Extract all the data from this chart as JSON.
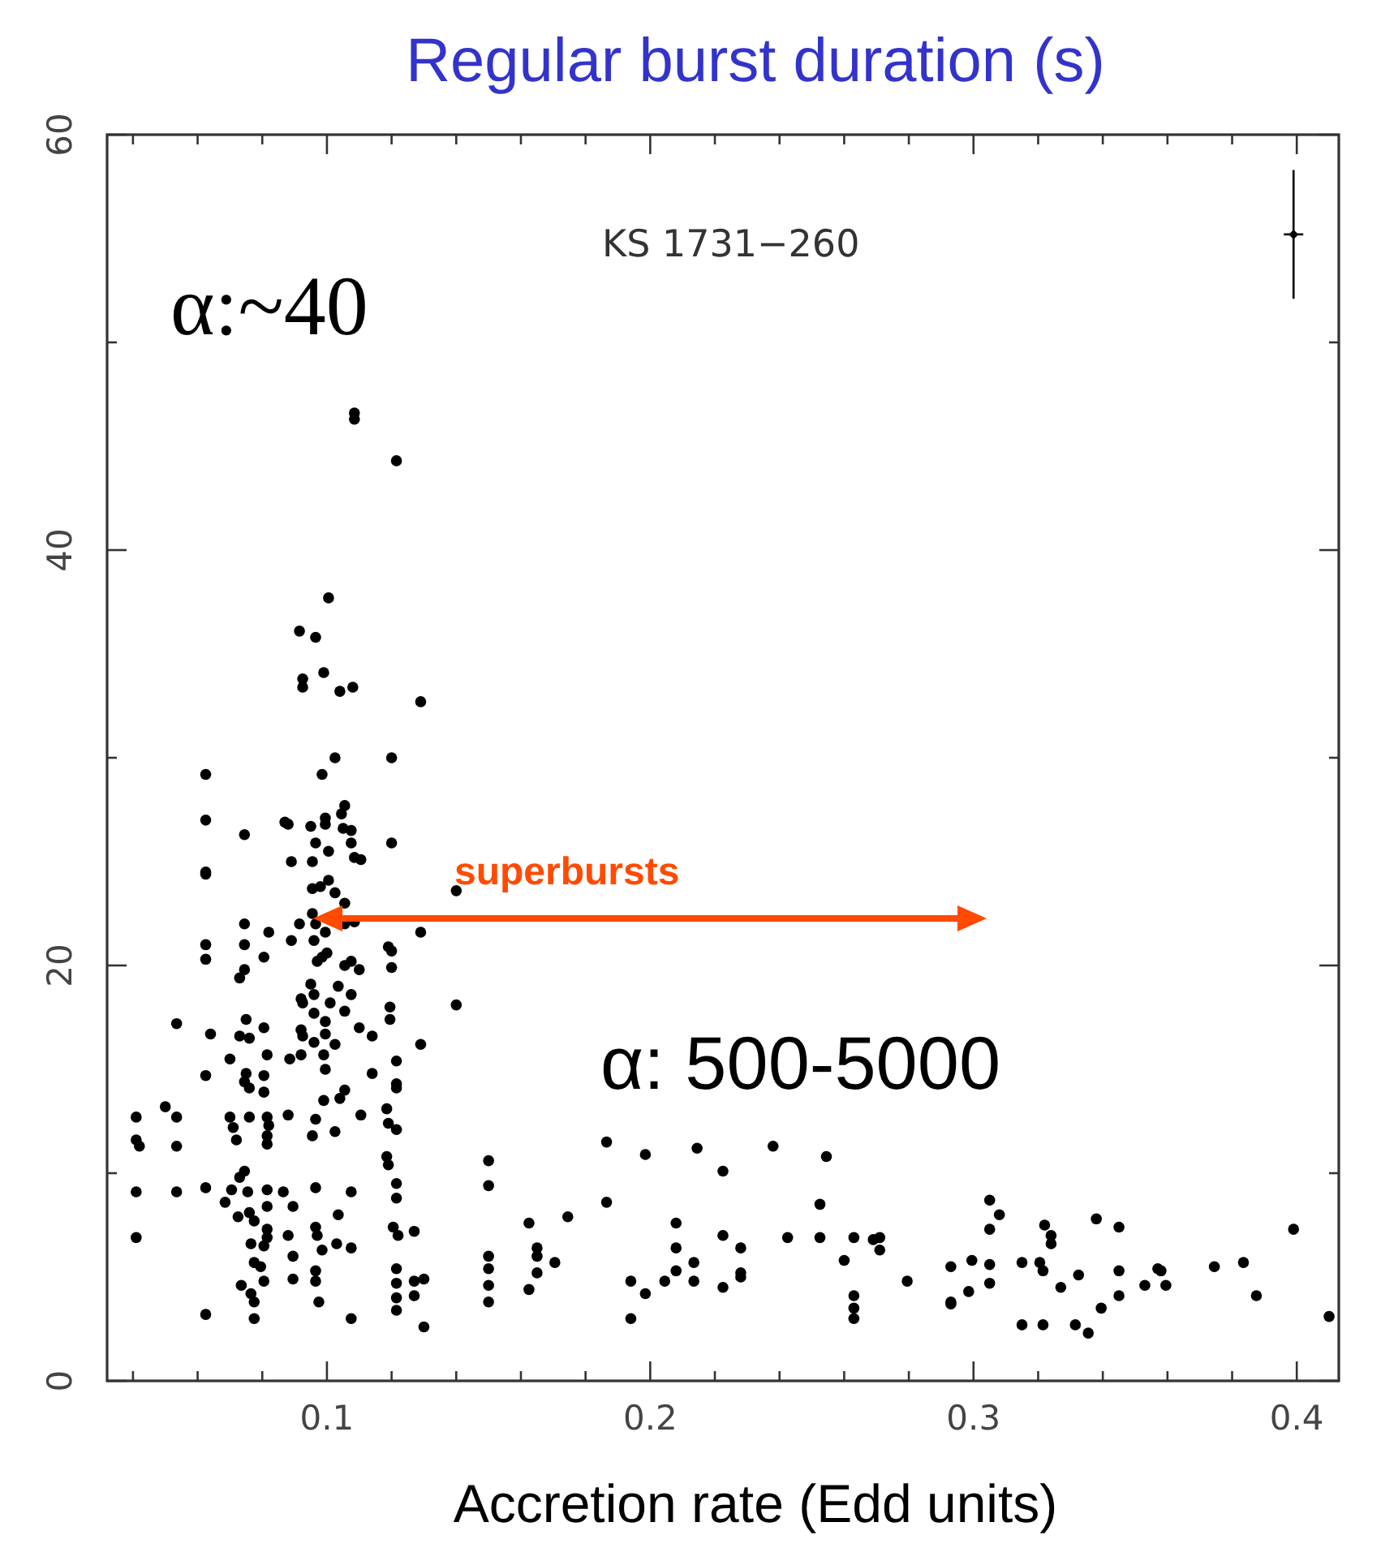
{
  "chart_data": {
    "type": "scatter",
    "title": "Regular burst duration (s)",
    "xlabel": "Accretion rate (Edd units)",
    "annotations": [
      "KS 1731−260",
      "α:~40",
      "α: 500-5000",
      "superbursts"
    ],
    "xlim": [
      0.032,
      0.413
    ],
    "xticks": [
      {
        "value": 0.04,
        "label": null
      },
      {
        "value": 0.06,
        "label": null
      },
      {
        "value": 0.08,
        "label": null
      },
      {
        "value": 0.1,
        "label": "0.1"
      },
      {
        "value": 0.12,
        "label": null
      },
      {
        "value": 0.14,
        "label": null
      },
      {
        "value": 0.16,
        "label": null
      },
      {
        "value": 0.18,
        "label": null
      },
      {
        "value": 0.2,
        "label": "0.2"
      },
      {
        "value": 0.22,
        "label": null
      },
      {
        "value": 0.24,
        "label": null
      },
      {
        "value": 0.26,
        "label": null
      },
      {
        "value": 0.28,
        "label": null
      },
      {
        "value": 0.3,
        "label": "0.3"
      },
      {
        "value": 0.32,
        "label": null
      },
      {
        "value": 0.34,
        "label": null
      },
      {
        "value": 0.36,
        "label": null
      },
      {
        "value": 0.38,
        "label": null
      },
      {
        "value": 0.4,
        "label": "0.4"
      }
    ],
    "ylim": [
      0,
      60
    ],
    "yticks": [
      0,
      {
        "value": 10,
        "label": null
      },
      20,
      {
        "value": 30,
        "label": null
      },
      40,
      {
        "value": 50,
        "label": null
      },
      60
    ],
    "grid": false,
    "marker": "circle",
    "series": [
      {
        "color": "#000000",
        "x": [
          0.1005,
          0.0915,
          0.0965,
          0.099,
          0.0925,
          0.0925,
          0.104,
          0.108,
          0.129,
          0.1025,
          0.12,
          0.0625,
          0.0985,
          0.0625,
          0.0745,
          0.087,
          0.088,
          0.095,
          0.0995,
          0.0995,
          0.1055,
          0.1045,
          0.105,
          0.1075,
          0.0965,
          0.1075,
          0.12,
          0.1005,
          0.1085,
          0.1105,
          0.089,
          0.0955,
          0.0625,
          0.0625,
          0.0955,
          0.098,
          0.1005,
          0.1025,
          0.14,
          0.1055,
          0.0955,
          0.0745,
          0.082,
          0.0915,
          0.0965,
          0.1055,
          0.1085,
          0.129,
          0.0625,
          0.0745,
          0.089,
          0.096,
          0.0995,
          0.1,
          0.0985,
          0.0625,
          0.0805,
          0.0745,
          0.073,
          0.097,
          0.1075,
          0.1055,
          0.11,
          0.119,
          0.12,
          0.12,
          0.095,
          0.1035,
          0.092,
          0.0925,
          0.096,
          0.101,
          0.1075,
          0.096,
          0.0995,
          0.1055,
          0.1195,
          0.1195,
          0.14,
          0.0535,
          0.064,
          0.075,
          0.073,
          0.076,
          0.0805,
          0.092,
          0.0925,
          0.0995,
          0.096,
          0.1025,
          0.11,
          0.114,
          0.129,
          0.07,
          0.0815,
          0.0885,
          0.092,
          0.099,
          0.0995,
          0.1215,
          0.0625,
          0.075,
          0.0745,
          0.076,
          0.0805,
          0.0805,
          0.114,
          0.1215,
          0.1215,
          0.1055,
          0.104,
          0.099,
          0.05,
          0.041,
          0.0535,
          0.07,
          0.076,
          0.071,
          0.072,
          0.0815,
          0.082,
          0.0815,
          0.0815,
          0.088,
          0.0965,
          0.0955,
          0.1025,
          0.1105,
          0.1185,
          0.119,
          0.1215,
          0.041,
          0.042,
          0.0535,
          0.1185,
          0.119,
          0.0745,
          0.073,
          0.1215,
          0.1215,
          0.041,
          0.0535,
          0.0625,
          0.0705,
          0.0755,
          0.0815,
          0.0815,
          0.0865,
          0.0895,
          0.0685,
          0.0725,
          0.076,
          0.0775,
          0.0965,
          0.1075,
          0.1035,
          0.041,
          0.0815,
          0.0815,
          0.0765,
          0.0805,
          0.088,
          0.0895,
          0.0965,
          0.097,
          0.0985,
          0.103,
          0.1075,
          0.1205,
          0.122,
          0.127,
          0.0775,
          0.0795,
          0.0805,
          0.0735,
          0.0765,
          0.0775,
          0.0895,
          0.0965,
          0.0965,
          0.0975,
          0.1215,
          0.1215,
          0.1215,
          0.1215,
          0.127,
          0.13,
          0.127,
          0.0625,
          0.0775,
          0.1075,
          0.13,
          0.1085,
          0.1085,
          0.1215,
          0.15,
          0.15,
          0.15,
          0.15,
          0.15,
          0.15,
          0.1625,
          0.1625,
          0.165,
          0.165,
          0.165,
          0.1705,
          0.1745,
          0.1865,
          0.1865,
          0.194,
          0.194,
          0.1985,
          0.1985,
          0.2045,
          0.208,
          0.208,
          0.208,
          0.2135,
          0.2135,
          0.2145,
          0.2225,
          0.2225,
          0.2225,
          0.228,
          0.228,
          0.228,
          0.238,
          0.2425,
          0.2525,
          0.2525,
          0.2545,
          0.26,
          0.263,
          0.263,
          0.263,
          0.263,
          0.269,
          0.271,
          0.271,
          0.2795,
          0.293,
          0.293,
          0.293,
          0.2985,
          0.2995,
          0.305,
          0.308,
          0.305,
          0.305,
          0.305,
          0.315,
          0.315,
          0.3205,
          0.3215,
          0.3215,
          0.322,
          0.324,
          0.324,
          0.327,
          0.3315,
          0.3355,
          0.3325,
          0.338,
          0.3395,
          0.345,
          0.345,
          0.345,
          0.353,
          0.357,
          0.358,
          0.3595,
          0.3745,
          0.3835,
          0.3875,
          0.399,
          0.41
        ],
        "values": [
          37.7,
          36.1,
          35.8,
          34.1,
          33.8,
          33.4,
          33.2,
          33.4,
          32.7,
          30.0,
          30.0,
          29.2,
          29.2,
          27.0,
          26.3,
          26.9,
          26.8,
          26.7,
          27.1,
          26.8,
          27.7,
          27.3,
          26.6,
          26.5,
          25.9,
          25.9,
          25.9,
          25.5,
          25.2,
          25.1,
          25.0,
          25.0,
          24.5,
          24.4,
          23.7,
          23.8,
          24.1,
          23.5,
          23.6,
          23.0,
          22.5,
          22.0,
          21.6,
          22.0,
          22.0,
          22.0,
          22.1,
          21.6,
          21.0,
          21.0,
          21.2,
          21.2,
          21.6,
          20.6,
          20.4,
          20.3,
          20.4,
          19.8,
          19.4,
          20.2,
          20.2,
          20.0,
          19.8,
          20.9,
          20.7,
          19.9,
          19.1,
          19.0,
          18.4,
          18.2,
          18.6,
          18.2,
          18.6,
          17.7,
          17.3,
          17.8,
          18.0,
          17.4,
          18.1,
          17.2,
          16.7,
          17.4,
          16.6,
          16.5,
          17.0,
          16.9,
          16.6,
          16.7,
          16.3,
          16.2,
          17.0,
          16.6,
          16.2,
          15.5,
          15.7,
          15.5,
          15.7,
          15.7,
          15.0,
          15.4,
          14.7,
          14.8,
          14.4,
          14.1,
          14.7,
          13.9,
          14.8,
          14.3,
          14.1,
          14.0,
          13.6,
          13.5,
          13.2,
          12.7,
          12.7,
          12.7,
          12.7,
          12.2,
          11.6,
          12.7,
          12.3,
          11.8,
          11.4,
          12.8,
          12.6,
          11.8,
          12.0,
          12.8,
          13.1,
          12.4,
          12.1,
          11.6,
          11.3,
          11.3,
          10.8,
          10.4,
          10.1,
          9.8,
          9.5,
          8.8,
          9.1,
          9.1,
          9.3,
          9.2,
          9.1,
          9.2,
          8.4,
          9.1,
          8.4,
          8.6,
          7.9,
          8.1,
          7.7,
          9.3,
          9.1,
          8.0,
          6.9,
          7.3,
          6.9,
          6.6,
          6.5,
          7.0,
          6.0,
          7.4,
          7.0,
          6.3,
          6.6,
          6.4,
          7.4,
          7.0,
          7.2,
          5.7,
          5.5,
          4.8,
          4.6,
          4.2,
          3.8,
          4.9,
          5.3,
          4.8,
          3.8,
          5.4,
          4.7,
          4.0,
          3.4,
          4.8,
          4.9,
          4.1,
          3.2,
          3.0,
          3.0,
          2.6,
          46.6,
          46.3,
          44.3,
          10.6,
          9.4,
          6.0,
          5.4,
          4.6,
          3.8,
          7.6,
          4.4,
          6.4,
          6.0,
          5.2,
          5.7,
          7.9,
          11.5,
          8.6,
          4.8,
          3.0,
          10.9,
          4.2,
          4.8,
          7.6,
          6.4,
          5.3,
          5.7,
          4.8,
          11.2,
          10.1,
          7.0,
          4.5,
          6.4,
          5.2,
          5.0,
          11.3,
          6.9,
          8.5,
          6.9,
          10.8,
          5.8,
          6.9,
          4.1,
          3.5,
          3.0,
          6.8,
          6.9,
          6.3,
          4.8,
          5.5,
          3.8,
          3.7,
          4.3,
          5.8,
          8.7,
          8.0,
          7.3,
          5.6,
          4.7,
          5.7,
          2.7,
          5.7,
          5.3,
          2.7,
          7.5,
          7.0,
          6.6,
          4.5,
          2.7,
          2.3,
          5.1,
          7.8,
          3.5,
          7.4,
          5.3,
          4.1,
          4.6,
          5.4,
          5.3,
          4.6,
          5.5,
          5.7,
          4.1,
          7.3,
          3.1
        ]
      },
      {
        "color": "#000000",
        "marker": "diamond",
        "x": [
          0.399
        ],
        "values": [
          55.2
        ],
        "errors": [
          3.1
        ],
        "xerrors": [
          0.003
        ]
      }
    ]
  }
}
